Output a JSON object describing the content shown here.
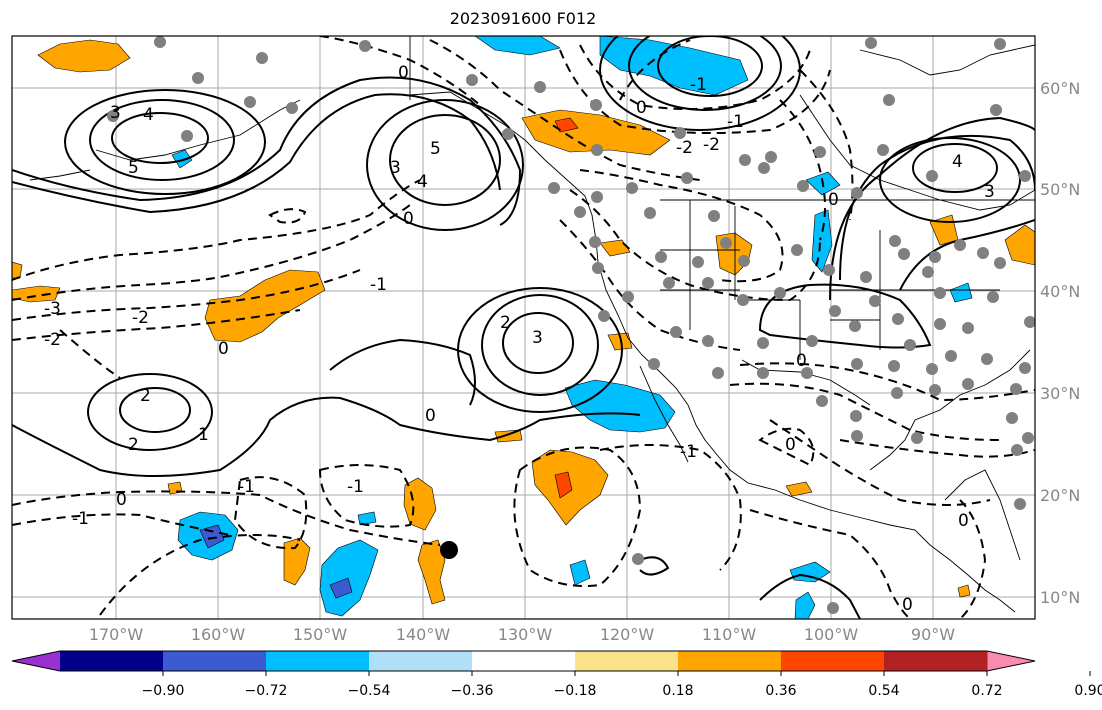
{
  "title": "2023091600 F012",
  "lon_labels": [
    "170°W",
    "160°W",
    "150°W",
    "140°W",
    "130°W",
    "120°W",
    "110°W",
    "100°W",
    "90°W"
  ],
  "lat_labels": [
    "60°N",
    "50°N",
    "40°N",
    "30°N",
    "20°N",
    "10°N"
  ],
  "colorbar": {
    "ticks": [
      "−0.90",
      "−0.72",
      "−0.54",
      "−0.36",
      "−0.18",
      "0.18",
      "0.36",
      "0.54",
      "0.72",
      "0.90"
    ],
    "colors": [
      "#9b30d0",
      "#00008b",
      "#3b5bd0",
      "#00bfff",
      "#b0e0f8",
      "#ffffff",
      "#fbe38a",
      "#ffa500",
      "#ff4500",
      "#b22222",
      "#f98ab0"
    ]
  },
  "contour_labels": {
    "l1": "3",
    "l2": "4",
    "l3": "5",
    "l4": "5",
    "l5": "4",
    "l6": "3",
    "l7": "0",
    "l8": "0",
    "l9": "-3",
    "l10": "-2",
    "l11": "-2",
    "l12": "0",
    "l13": "-1",
    "l14": "3",
    "l15": "2",
    "l16": "2",
    "l17": "2",
    "l18": "1",
    "l19": "0",
    "l20": "-1",
    "l21": "0",
    "l22": "-1",
    "l23": "-1",
    "l24": "4",
    "l25": "3",
    "l26": "0",
    "l27": "-1",
    "l28": "0",
    "l29": "-1",
    "l30": "-2",
    "l31": "-2",
    "l32": "0",
    "l33": "0",
    "l34": "0",
    "l35": "-1",
    "l36": "0",
    "l37": "1"
  }
}
